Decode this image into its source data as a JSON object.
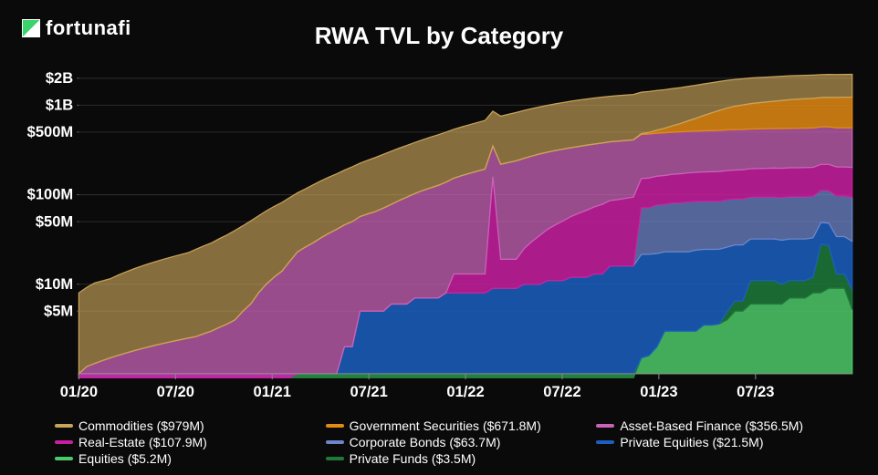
{
  "brand": "fortunafi",
  "chart": {
    "type": "stacked-area",
    "title": "RWA TVL by Category",
    "background_color": "#0a0a0a",
    "text_color": "#ffffff",
    "title_fontsize": 26,
    "axis_label_fontsize": 16,
    "yscale": "log",
    "ylim": [
      1000000,
      2500000000
    ],
    "ytick_values": [
      5000000,
      10000000,
      50000000,
      100000000,
      500000000,
      1000000000,
      2000000000
    ],
    "ytick_labels": [
      "$5M",
      "$10M",
      "$50M",
      "$100M",
      "$500M",
      "$1B",
      "$2B"
    ],
    "xtick_labels": [
      "01/20",
      "07/20",
      "01/21",
      "07/21",
      "01/22",
      "07/22",
      "01/23",
      "07/23"
    ],
    "xtick_positions": [
      0,
      12.5,
      25,
      37.5,
      50,
      62.5,
      75,
      87.5
    ],
    "series": [
      {
        "name": "Equities",
        "label": "Equities ($5.2M)",
        "color": "#4cc96a",
        "fill_opacity": 0.85,
        "values": [
          0,
          0,
          0,
          0,
          0,
          0,
          0,
          0,
          0,
          0,
          0,
          0,
          0,
          0,
          0,
          0,
          0,
          0,
          0,
          0,
          0,
          0,
          0,
          0,
          0,
          0,
          0,
          0,
          0,
          0,
          0,
          0,
          0,
          0,
          0,
          0,
          0,
          0,
          0,
          0,
          0,
          0,
          0,
          0,
          0,
          0,
          0,
          0,
          0,
          0,
          0,
          0,
          0,
          0,
          0,
          0,
          0,
          0,
          0,
          0,
          0,
          0,
          0,
          0,
          0,
          0,
          0,
          0,
          0,
          0,
          0,
          0,
          1.5,
          1.6,
          2,
          3,
          3,
          3,
          3,
          3,
          3.5,
          3.5,
          3.6,
          4,
          5,
          5,
          6,
          6,
          6,
          6,
          6,
          7,
          7,
          7,
          8,
          8,
          9,
          9,
          9,
          5.2
        ]
      },
      {
        "name": "Private Funds",
        "label": "Private Funds ($3.5M)",
        "color": "#1f7a3a",
        "fill_opacity": 0.85,
        "values": [
          0,
          0,
          0,
          0,
          0,
          0,
          0,
          0,
          0,
          0,
          0,
          0,
          0,
          0,
          0,
          0,
          0,
          0,
          0,
          0,
          0,
          0,
          0,
          0,
          0,
          0,
          0,
          0,
          0,
          0,
          0,
          0,
          0,
          0,
          0,
          0,
          0,
          0,
          0,
          0,
          0,
          0,
          0,
          0,
          0,
          0,
          0,
          0,
          0,
          0,
          0,
          0,
          0,
          0,
          0,
          0,
          0,
          0,
          0,
          0,
          0,
          0,
          0,
          0,
          0,
          0,
          0,
          0,
          0,
          0,
          0,
          0,
          0,
          0,
          0,
          0,
          0,
          0,
          0,
          0,
          0,
          0,
          0,
          1,
          1.5,
          1.5,
          5,
          5,
          5,
          5,
          4,
          4,
          4,
          4,
          4,
          20,
          18,
          4,
          4,
          3.5
        ]
      },
      {
        "name": "Private Equities",
        "label": "Private Equities ($21.5M)",
        "color": "#1b5fbf",
        "fill_opacity": 0.85,
        "values": [
          0,
          0,
          0,
          0,
          0,
          0,
          0,
          0,
          0,
          0,
          0,
          0,
          0,
          0,
          0,
          0,
          0,
          0,
          0,
          0,
          0,
          0,
          0,
          0,
          0,
          0,
          0,
          0,
          1.0,
          1.0,
          1.0,
          1.0,
          1.0,
          1.0,
          2,
          2,
          5,
          5,
          5,
          5,
          6,
          6,
          6,
          7,
          7,
          7,
          7,
          8,
          8,
          8,
          8,
          8,
          8,
          9,
          9,
          9,
          9,
          10,
          10,
          10,
          11,
          11,
          11,
          12,
          12,
          12,
          13,
          13,
          16,
          16,
          16,
          16,
          20,
          20,
          20,
          20,
          20,
          20,
          20,
          21,
          21,
          21,
          21,
          21,
          21,
          21,
          21,
          21,
          21,
          21,
          21,
          21,
          21,
          21,
          21,
          21,
          21,
          21,
          21,
          21.5
        ]
      },
      {
        "name": "Corporate Bonds",
        "label": "Corporate Bonds ($63.7M)",
        "color": "#6d86c9",
        "fill_opacity": 0.75,
        "values": [
          0,
          0,
          0,
          0,
          0,
          0,
          0,
          0,
          0,
          0,
          0,
          0,
          0,
          0,
          0,
          0,
          0,
          0,
          0,
          0,
          0,
          0,
          0,
          0,
          0,
          0,
          0,
          0,
          0,
          0,
          0,
          0,
          0,
          0,
          0,
          0,
          0,
          0,
          0,
          0,
          0,
          0,
          0,
          0,
          0,
          0,
          0,
          0,
          0,
          0,
          0,
          0,
          0,
          0,
          0,
          0,
          0,
          0,
          0,
          0,
          0,
          0,
          0,
          0,
          0,
          0,
          0,
          0,
          0,
          0,
          0,
          0,
          50,
          50,
          55,
          55,
          58,
          58,
          60,
          60,
          60,
          60,
          60,
          62,
          62,
          62,
          62,
          62,
          62,
          62,
          62,
          63,
          63,
          63,
          63,
          63,
          63,
          63,
          63,
          63.7
        ]
      },
      {
        "name": "Real-Estate",
        "label": "Real-Estate ($107.9M)",
        "color": "#c81fa0",
        "fill_opacity": 0.85,
        "values": [
          0,
          0,
          0,
          0,
          0,
          0,
          0,
          0,
          0,
          0,
          0,
          0,
          0,
          0,
          0,
          0,
          0,
          0,
          0,
          0,
          0,
          0,
          0,
          0,
          0,
          0,
          0,
          0,
          0,
          0,
          0,
          0,
          0,
          0,
          0,
          0,
          0,
          0,
          0,
          0,
          0,
          0,
          0,
          0,
          0,
          0,
          0,
          0,
          5,
          5,
          5,
          5,
          5,
          150,
          10,
          10,
          10,
          15,
          20,
          25,
          30,
          35,
          40,
          45,
          50,
          55,
          60,
          65,
          70,
          72,
          75,
          78,
          80,
          82,
          84,
          86,
          88,
          90,
          92,
          94,
          95,
          96,
          97,
          98,
          99,
          100,
          101,
          102,
          103,
          104,
          104,
          105,
          105,
          106,
          106,
          106,
          107,
          107,
          107,
          107.9
        ]
      },
      {
        "name": "Asset-Based Finance",
        "label": "Asset-Based Finance ($356.5M)",
        "color": "#c863b8",
        "fill_opacity": 0.75,
        "values": [
          1.0,
          1.2,
          1.3,
          1.4,
          1.5,
          1.6,
          1.7,
          1.8,
          1.9,
          2.0,
          2.1,
          2.2,
          2.3,
          2.4,
          2.5,
          2.6,
          2.8,
          3.0,
          3.3,
          3.6,
          4,
          5,
          6,
          8,
          10,
          12,
          14,
          18,
          22,
          25,
          28,
          32,
          36,
          40,
          44,
          48,
          52,
          56,
          60,
          66,
          72,
          80,
          88,
          96,
          104,
          112,
          120,
          130,
          140,
          150,
          160,
          170,
          180,
          190,
          200,
          210,
          220,
          230,
          240,
          250,
          258,
          265,
          272,
          278,
          284,
          290,
          295,
          300,
          304,
          308,
          312,
          316,
          319,
          322,
          325,
          328,
          330,
          332,
          334,
          336,
          338,
          340,
          342,
          344,
          345,
          346,
          347,
          348,
          349,
          350,
          351,
          352,
          353,
          354,
          354,
          355,
          355,
          356,
          356,
          356.5
        ]
      },
      {
        "name": "Government Securities",
        "label": "Government Securities ($671.8M)",
        "color": "#e28a13",
        "fill_opacity": 0.85,
        "values": [
          0,
          0,
          0,
          0,
          0,
          0,
          0,
          0,
          0,
          0,
          0,
          0,
          0,
          0,
          0,
          0,
          0,
          0,
          0,
          0,
          0,
          0,
          0,
          0,
          0,
          0,
          0,
          0,
          0,
          0,
          0,
          0,
          0,
          0,
          0,
          0,
          0,
          0,
          0,
          0,
          0,
          0,
          0,
          0,
          0,
          0,
          0,
          0,
          0,
          0,
          0,
          0,
          0,
          0,
          0,
          0,
          0,
          0,
          0,
          0,
          0,
          0,
          0,
          0,
          0,
          0,
          0,
          0,
          0,
          0,
          0,
          0,
          10,
          20,
          40,
          60,
          90,
          120,
          160,
          200,
          250,
          300,
          350,
          400,
          440,
          470,
          500,
          520,
          540,
          560,
          580,
          600,
          615,
          625,
          635,
          645,
          652,
          660,
          666,
          671.8
        ]
      },
      {
        "name": "Commodities",
        "label": "Commodities ($979M)",
        "color": "#c9a35a",
        "fill_opacity": 0.65,
        "values": [
          7,
          8,
          9,
          9.5,
          10,
          11,
          12,
          13,
          14,
          15,
          16,
          17,
          18,
          19,
          20,
          22,
          24,
          26,
          29,
          32,
          36,
          40,
          45,
          50,
          56,
          62,
          68,
          75,
          82,
          90,
          100,
          110,
          120,
          130,
          142,
          155,
          168,
          182,
          196,
          212,
          228,
          245,
          262,
          280,
          300,
          320,
          340,
          362,
          385,
          408,
          432,
          456,
          482,
          508,
          535,
          562,
          590,
          618,
          645,
          672,
          698,
          724,
          748,
          772,
          794,
          815,
          834,
          852,
          868,
          882,
          895,
          906,
          916,
          925,
          932,
          938,
          944,
          949,
          953,
          957,
          960,
          962,
          964,
          966,
          968,
          970,
          971,
          972,
          973,
          974,
          975,
          976,
          976,
          977,
          977,
          978,
          978,
          979,
          979,
          979
        ]
      }
    ],
    "legend_order": [
      "Commodities",
      "Government Securities",
      "Asset-Based Finance",
      "Real-Estate",
      "Corporate Bonds",
      "Private Equities",
      "Equities",
      "Private Funds"
    ]
  }
}
